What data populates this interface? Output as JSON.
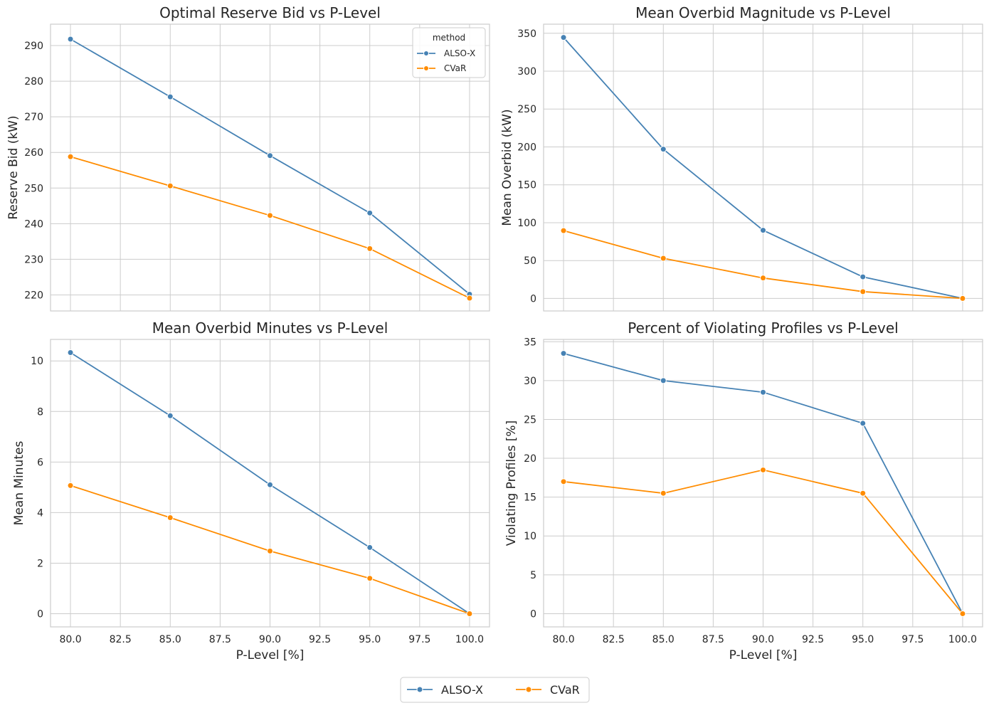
{
  "colors": {
    "ALSO-X": "#4682b4",
    "CVaR": "#ff8c00",
    "grid": "#cccccc",
    "text": "#262626"
  },
  "legend": {
    "title": "method",
    "entries": [
      "ALSO-X",
      "CVaR"
    ],
    "figure_legend_placement": "bottom-center",
    "axes_legend_placement": "top-right of first panel"
  },
  "chart_data": [
    {
      "type": "line",
      "title": "Optimal Reserve Bid vs P-Level",
      "xlabel": "",
      "ylabel": "Reserve Bid (kW)",
      "x": [
        80,
        85,
        90,
        95,
        100
      ],
      "xlim": [
        79,
        101
      ],
      "ylim": [
        215.5,
        296
      ],
      "yticks": [
        220,
        230,
        240,
        250,
        260,
        270,
        280,
        290
      ],
      "xticks": [],
      "grid": true,
      "series": [
        {
          "name": "ALSO-X",
          "values": [
            291.8,
            275.6,
            259.1,
            243.0,
            220.2
          ]
        },
        {
          "name": "CVaR",
          "values": [
            258.8,
            250.6,
            242.3,
            233.0,
            219.1
          ]
        }
      ]
    },
    {
      "type": "line",
      "title": "Mean Overbid Magnitude vs P-Level",
      "xlabel": "",
      "ylabel": "Mean Overbid (kW)",
      "x": [
        80,
        85,
        90,
        95,
        100
      ],
      "xlim": [
        79,
        101
      ],
      "ylim": [
        -16.5,
        362
      ],
      "yticks": [
        0,
        50,
        100,
        150,
        200,
        250,
        300,
        350
      ],
      "xticks": [],
      "grid": true,
      "series": [
        {
          "name": "ALSO-X",
          "values": [
            344.5,
            197.0,
            90.0,
            28.5,
            0.0
          ]
        },
        {
          "name": "CVaR",
          "values": [
            89.5,
            53.0,
            27.0,
            9.0,
            0.0
          ]
        }
      ]
    },
    {
      "type": "line",
      "title": "Mean Overbid Minutes vs P-Level",
      "xlabel": "P-Level [%]",
      "ylabel": "Mean Minutes",
      "x": [
        80,
        85,
        90,
        95,
        100
      ],
      "xlim": [
        79,
        101
      ],
      "ylim": [
        -0.52,
        10.85
      ],
      "yticks": [
        0,
        2,
        4,
        6,
        8,
        10
      ],
      "xticks": [
        "80.0",
        "82.5",
        "85.0",
        "87.5",
        "90.0",
        "92.5",
        "95.0",
        "97.5",
        "100.0"
      ],
      "grid": true,
      "series": [
        {
          "name": "ALSO-X",
          "values": [
            10.33,
            7.83,
            5.1,
            2.62,
            0.0
          ]
        },
        {
          "name": "CVaR",
          "values": [
            5.07,
            3.8,
            2.48,
            1.4,
            0.0
          ]
        }
      ]
    },
    {
      "type": "line",
      "title": "Percent of Violating Profiles vs P-Level",
      "xlabel": "P-Level [%]",
      "ylabel": "Violating Profiles [%]",
      "x": [
        80,
        85,
        90,
        95,
        100
      ],
      "xlim": [
        79,
        101
      ],
      "ylim": [
        -1.7,
        35.3
      ],
      "yticks": [
        0,
        5,
        10,
        15,
        20,
        25,
        30,
        35
      ],
      "xticks": [
        "80.0",
        "82.5",
        "85.0",
        "87.5",
        "90.0",
        "92.5",
        "95.0",
        "97.5",
        "100.0"
      ],
      "grid": true,
      "series": [
        {
          "name": "ALSO-X",
          "values": [
            33.5,
            30.0,
            28.5,
            24.5,
            0.0
          ]
        },
        {
          "name": "CVaR",
          "values": [
            17.0,
            15.5,
            18.5,
            15.5,
            0.0
          ]
        }
      ]
    }
  ]
}
